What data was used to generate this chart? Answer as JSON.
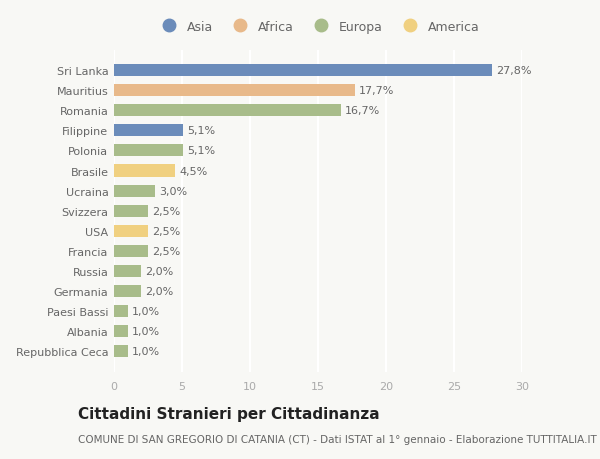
{
  "countries": [
    "Sri Lanka",
    "Mauritius",
    "Romania",
    "Filippine",
    "Polonia",
    "Brasile",
    "Ucraina",
    "Svizzera",
    "USA",
    "Francia",
    "Russia",
    "Germania",
    "Paesi Bassi",
    "Albania",
    "Repubblica Ceca"
  ],
  "values": [
    27.8,
    17.7,
    16.7,
    5.1,
    5.1,
    4.5,
    3.0,
    2.5,
    2.5,
    2.5,
    2.0,
    2.0,
    1.0,
    1.0,
    1.0
  ],
  "labels": [
    "27,8%",
    "17,7%",
    "16,7%",
    "5,1%",
    "5,1%",
    "4,5%",
    "3,0%",
    "2,5%",
    "2,5%",
    "2,5%",
    "2,0%",
    "2,0%",
    "1,0%",
    "1,0%",
    "1,0%"
  ],
  "regions": [
    "Asia",
    "Africa",
    "Europa",
    "Asia",
    "Europa",
    "America",
    "Europa",
    "Europa",
    "America",
    "Europa",
    "Europa",
    "Europa",
    "Europa",
    "Europa",
    "Europa"
  ],
  "region_colors": {
    "Asia": "#6b8cba",
    "Africa": "#e8b98a",
    "Europa": "#a8bc8a",
    "America": "#f0d080"
  },
  "legend_order": [
    "Asia",
    "Africa",
    "Europa",
    "America"
  ],
  "title": "Cittadini Stranieri per Cittadinanza",
  "subtitle": "COMUNE DI SAN GREGORIO DI CATANIA (CT) - Dati ISTAT al 1° gennaio - Elaborazione TUTTITALIA.IT",
  "xlim": [
    0,
    30
  ],
  "xticks": [
    0,
    5,
    10,
    15,
    20,
    25,
    30
  ],
  "background_color": "#f8f8f5",
  "grid_color": "#ffffff",
  "bar_height": 0.6,
  "title_fontsize": 11,
  "subtitle_fontsize": 7.5,
  "label_fontsize": 8,
  "tick_fontsize": 8,
  "legend_fontsize": 9
}
